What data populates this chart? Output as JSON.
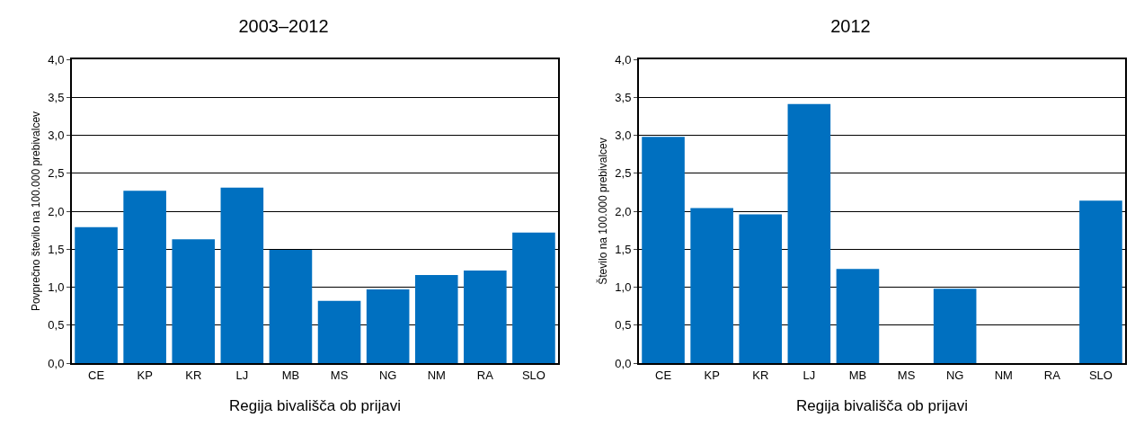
{
  "chart_data": [
    {
      "type": "bar",
      "title": "2003–2012",
      "xlabel": "Regija bivališča ob prijavi",
      "ylabel": "Povprečno število na 100.000 prebivalcev",
      "categories": [
        "CE",
        "KP",
        "KR",
        "LJ",
        "MB",
        "MS",
        "NG",
        "NM",
        "RA",
        "SLO"
      ],
      "values": [
        1.79,
        2.27,
        1.63,
        2.31,
        1.49,
        0.82,
        0.97,
        1.16,
        1.22,
        1.72
      ],
      "color": "#0070c0",
      "ylim": [
        0,
        4
      ],
      "yticks": [
        {
          "value": 0,
          "label": "0,0"
        },
        {
          "value": 0.5,
          "label": "0,5"
        },
        {
          "value": 1,
          "label": "1,0"
        },
        {
          "value": 1.5,
          "label": "1,5"
        },
        {
          "value": 2,
          "label": "2,0"
        },
        {
          "value": 2.5,
          "label": "2,5"
        },
        {
          "value": 3,
          "label": "3,0"
        },
        {
          "value": 3.5,
          "label": "3,5"
        },
        {
          "value": 4,
          "label": "4,0"
        }
      ],
      "grid": "y"
    },
    {
      "type": "bar",
      "title": "2012",
      "xlabel": "Regija bivališča ob prijavi",
      "ylabel": "Število na 100.000 prebivalcev",
      "categories": [
        "CE",
        "KP",
        "KR",
        "LJ",
        "MB",
        "MS",
        "NG",
        "NM",
        "RA",
        "SLO"
      ],
      "values": [
        2.98,
        2.04,
        1.96,
        3.41,
        1.24,
        0,
        0.98,
        0,
        0,
        2.14
      ],
      "color": "#0070c0",
      "ylim": [
        0,
        4
      ],
      "yticks": [
        {
          "value": 0,
          "label": "0,0"
        },
        {
          "value": 0.5,
          "label": "0,5"
        },
        {
          "value": 1,
          "label": "1,0"
        },
        {
          "value": 1.5,
          "label": "1,5"
        },
        {
          "value": 2,
          "label": "2,0"
        },
        {
          "value": 2.5,
          "label": "2,5"
        },
        {
          "value": 3,
          "label": "3,0"
        },
        {
          "value": 3.5,
          "label": "3,5"
        },
        {
          "value": 4,
          "label": "4,0"
        }
      ],
      "grid": "y"
    }
  ]
}
